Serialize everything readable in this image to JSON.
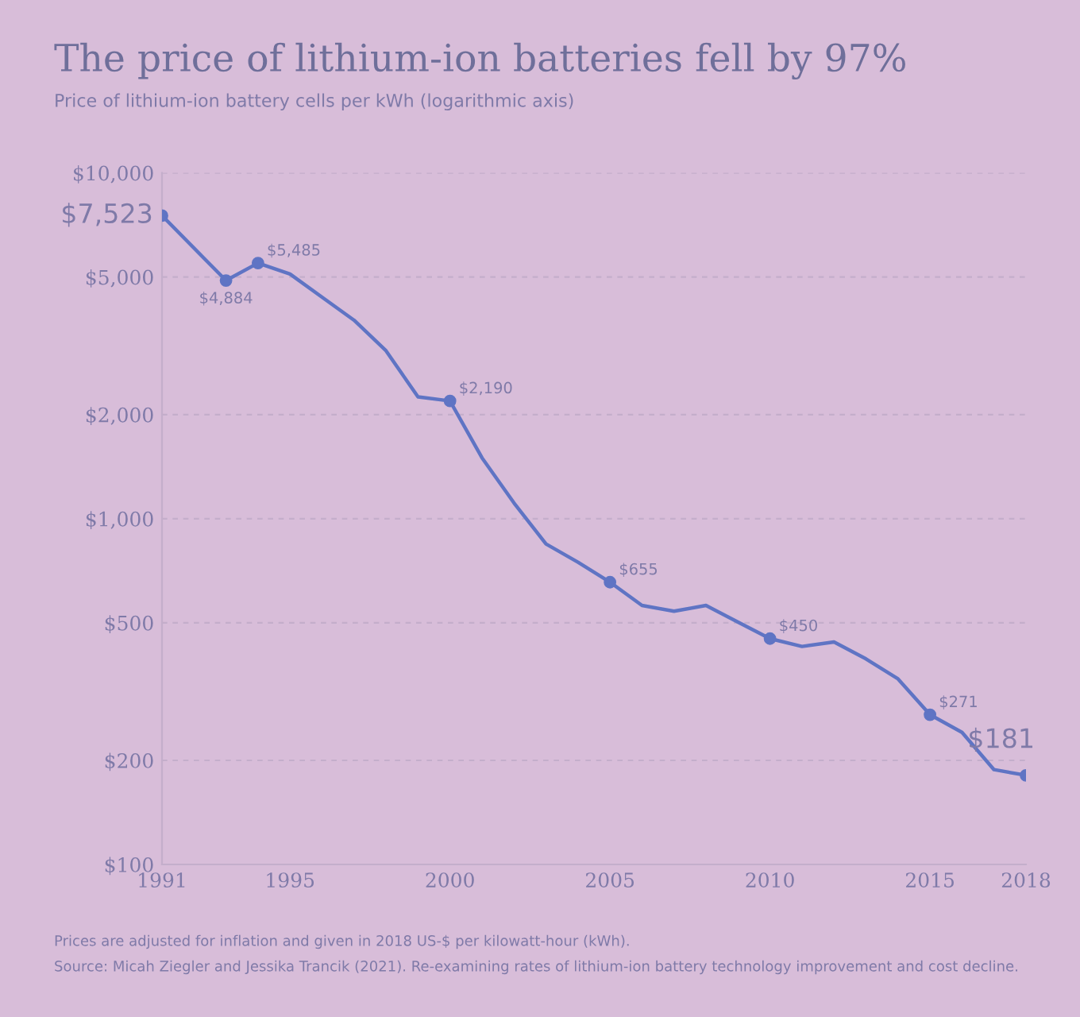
{
  "chart_data": {
    "type": "line",
    "title": "The price of lithium-ion batteries fell by 97%",
    "subtitle": "Price of lithium-ion battery cells per kWh (logarithmic axis)",
    "x": [
      1991,
      1993,
      1994,
      1995,
      1996,
      1997,
      1998,
      1999,
      2000,
      2001,
      2002,
      2003,
      2004,
      2005,
      2006,
      2007,
      2008,
      2009,
      2010,
      2011,
      2012,
      2013,
      2014,
      2015,
      2016,
      2017,
      2018
    ],
    "series": [
      {
        "color": "#5f74c4",
        "values": [
          7523,
          4884,
          5485,
          5100,
          4370,
          3750,
          3060,
          2250,
          2190,
          1500,
          1110,
          845,
          748,
          655,
          561,
          540,
          561,
          502,
          450,
          427,
          440,
          393,
          344,
          271,
          241,
          188,
          181
        ]
      }
    ],
    "log": "y",
    "xlim": [
      1991,
      2018
    ],
    "xticks": [
      1991,
      1995,
      2000,
      2005,
      2010,
      2015,
      2018
    ],
    "ylim": [
      100,
      10000
    ],
    "yticks": [
      {
        "value": 100,
        "label": "$100"
      },
      {
        "value": 200,
        "label": "$200"
      },
      {
        "value": 500,
        "label": "$500"
      },
      {
        "value": 1000,
        "label": "$1,000"
      },
      {
        "value": 2000,
        "label": "$2,000"
      },
      {
        "value": 5000,
        "label": "$5,000"
      },
      {
        "value": 10000,
        "label": "$10,000"
      }
    ],
    "grid": "y",
    "line_style": "solid",
    "annotations": [
      {
        "text": "$7,523",
        "x": 1991,
        "y": 7523
      },
      {
        "text": "$4,884",
        "x": 1993,
        "y": 4884
      },
      {
        "text": "$5,485",
        "x": 1994,
        "y": 5485
      },
      {
        "text": "$2,190",
        "x": 2000,
        "y": 2190
      },
      {
        "text": "$655",
        "x": 2005,
        "y": 655
      },
      {
        "text": "$450",
        "x": 2010,
        "y": 450
      },
      {
        "text": "$271",
        "x": 2015,
        "y": 271
      },
      {
        "text": "$181",
        "x": 2018,
        "y": 181
      },
      "Prices are adjusted for inflation and given in 2018 US-$ per kilowatt-hour (kWh).",
      "Source: Micah Ziegler and Jessika Trancik (2021). Re-examining rates of lithium-ion battery technology improvement and cost decline."
    ]
  }
}
